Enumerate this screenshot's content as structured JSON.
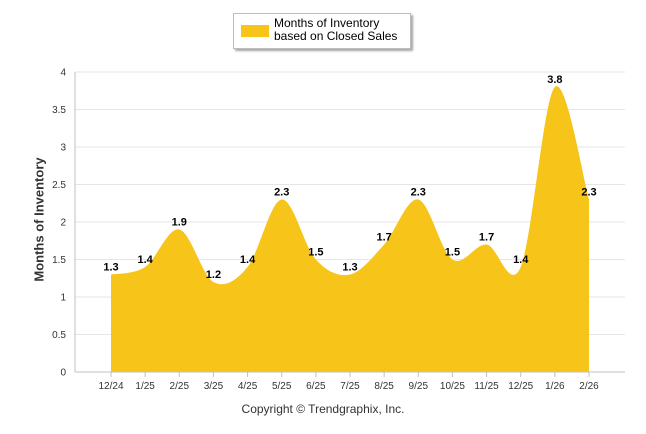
{
  "chart_data": {
    "type": "area",
    "title": "",
    "xlabel": "",
    "ylabel": "Months of Inventory",
    "ylim": [
      0,
      4
    ],
    "yticks": [
      "0",
      "0.5",
      "1",
      "1.5",
      "2",
      "2.5",
      "3",
      "3.5",
      "4"
    ],
    "grid": true,
    "legend_position": "top-center",
    "series": [
      {
        "name": "Months of Inventory based on Closed Sales",
        "color": "#F7C41A",
        "values": [
          1.3,
          1.4,
          1.9,
          1.2,
          1.4,
          2.3,
          1.5,
          1.3,
          1.7,
          2.3,
          1.5,
          1.7,
          1.4,
          3.8,
          2.3
        ],
        "labels": [
          "1.3",
          "1.4",
          "1.9",
          "1.2",
          "1.4",
          "2.3",
          "1.5",
          "1.3",
          "1.7",
          "2.3",
          "1.5",
          "1.7",
          "1.4",
          "3.8",
          "2.3"
        ]
      }
    ],
    "categories": [
      "12/24",
      "1/25",
      "2/25",
      "3/25",
      "4/25",
      "5/25",
      "6/25",
      "7/25",
      "8/25",
      "9/25",
      "10/25",
      "11/25",
      "12/25",
      "1/26",
      "2/26"
    ]
  },
  "legend": {
    "label": "Months of Inventory based on Closed Sales"
  },
  "footer": {
    "copyright": "Copyright © Trendgraphix, Inc."
  },
  "colors": {
    "fill": "#F7C41A",
    "grid": "#e6e6e6",
    "axis": "#c0c0c0"
  }
}
